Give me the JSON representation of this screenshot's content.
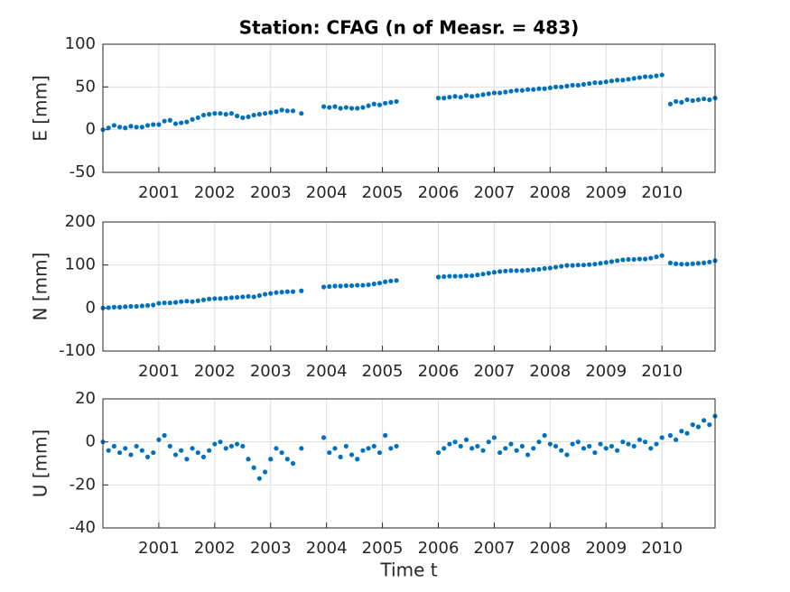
{
  "chart_data": [
    {
      "type": "scatter",
      "title": "Station: CFAG (n of Measr. = 483)",
      "ylabel": "E [mm]",
      "color": "#0072bd",
      "grid": true,
      "xlim": [
        2000.0,
        2010.95
      ],
      "xticks": [
        2001,
        2002,
        2003,
        2004,
        2005,
        2006,
        2007,
        2008,
        2009,
        2010
      ],
      "ylim": [
        -50,
        100
      ],
      "yticks": [
        -50,
        0,
        50,
        100
      ],
      "x": [
        2000.0,
        2000.1,
        2000.2,
        2000.3,
        2000.4,
        2000.5,
        2000.6,
        2000.7,
        2000.8,
        2000.9,
        2001.0,
        2001.1,
        2001.2,
        2001.3,
        2001.4,
        2001.5,
        2001.6,
        2001.7,
        2001.8,
        2001.9,
        2002.0,
        2002.1,
        2002.2,
        2002.3,
        2002.4,
        2002.5,
        2002.6,
        2002.7,
        2002.8,
        2002.9,
        2003.0,
        2003.1,
        2003.2,
        2003.3,
        2003.4,
        2003.55,
        2003.95,
        2004.05,
        2004.15,
        2004.25,
        2004.35,
        2004.45,
        2004.55,
        2004.65,
        2004.75,
        2004.85,
        2004.95,
        2005.05,
        2005.15,
        2005.25,
        2006.0,
        2006.1,
        2006.2,
        2006.3,
        2006.4,
        2006.5,
        2006.6,
        2006.7,
        2006.8,
        2006.9,
        2007.0,
        2007.1,
        2007.2,
        2007.3,
        2007.4,
        2007.5,
        2007.6,
        2007.7,
        2007.8,
        2007.9,
        2008.0,
        2008.1,
        2008.2,
        2008.3,
        2008.4,
        2008.5,
        2008.6,
        2008.7,
        2008.8,
        2008.9,
        2009.0,
        2009.1,
        2009.2,
        2009.3,
        2009.4,
        2009.5,
        2009.6,
        2009.7,
        2009.8,
        2009.9,
        2010.0,
        2010.15,
        2010.25,
        2010.35,
        2010.45,
        2010.55,
        2010.65,
        2010.75,
        2010.85,
        2010.95
      ],
      "values": [
        0,
        2,
        5,
        3,
        2,
        4,
        3,
        3,
        5,
        6,
        6,
        10,
        11,
        7,
        8,
        9,
        12,
        14,
        17,
        18,
        19,
        19,
        18,
        19,
        16,
        14,
        15,
        17,
        18,
        19,
        20,
        21,
        23,
        22,
        22,
        19,
        27,
        26,
        27,
        25,
        26,
        25,
        25,
        26,
        28,
        30,
        29,
        31,
        32,
        33,
        37,
        37,
        38,
        39,
        38,
        40,
        39,
        40,
        41,
        42,
        43,
        43,
        44,
        45,
        46,
        46,
        47,
        47,
        48,
        48,
        49,
        50,
        50,
        51,
        52,
        52,
        53,
        54,
        55,
        55,
        56,
        57,
        58,
        58,
        59,
        60,
        61,
        62,
        62,
        63,
        64,
        30,
        33,
        32,
        35,
        34,
        35,
        36,
        35,
        37
      ]
    },
    {
      "type": "scatter",
      "ylabel": "N [mm]",
      "color": "#0072bd",
      "grid": true,
      "xlim": [
        2000.0,
        2010.95
      ],
      "xticks": [
        2001,
        2002,
        2003,
        2004,
        2005,
        2006,
        2007,
        2008,
        2009,
        2010
      ],
      "ylim": [
        -100,
        200
      ],
      "yticks": [
        -100,
        0,
        100,
        200
      ],
      "x": [
        2000.0,
        2000.1,
        2000.2,
        2000.3,
        2000.4,
        2000.5,
        2000.6,
        2000.7,
        2000.8,
        2000.9,
        2001.0,
        2001.1,
        2001.2,
        2001.3,
        2001.4,
        2001.5,
        2001.6,
        2001.7,
        2001.8,
        2001.9,
        2002.0,
        2002.1,
        2002.2,
        2002.3,
        2002.4,
        2002.5,
        2002.6,
        2002.7,
        2002.8,
        2002.9,
        2003.0,
        2003.1,
        2003.2,
        2003.3,
        2003.4,
        2003.55,
        2003.95,
        2004.05,
        2004.15,
        2004.25,
        2004.35,
        2004.45,
        2004.55,
        2004.65,
        2004.75,
        2004.85,
        2004.95,
        2005.05,
        2005.15,
        2005.25,
        2006.0,
        2006.1,
        2006.2,
        2006.3,
        2006.4,
        2006.5,
        2006.6,
        2006.7,
        2006.8,
        2006.9,
        2007.0,
        2007.1,
        2007.2,
        2007.3,
        2007.4,
        2007.5,
        2007.6,
        2007.7,
        2007.8,
        2007.9,
        2008.0,
        2008.1,
        2008.2,
        2008.3,
        2008.4,
        2008.5,
        2008.6,
        2008.7,
        2008.8,
        2008.9,
        2009.0,
        2009.1,
        2009.2,
        2009.3,
        2009.4,
        2009.5,
        2009.6,
        2009.7,
        2009.8,
        2009.9,
        2010.0,
        2010.15,
        2010.25,
        2010.35,
        2010.45,
        2010.55,
        2010.65,
        2010.75,
        2010.85,
        2010.95
      ],
      "values": [
        0,
        1,
        2,
        2,
        3,
        4,
        4,
        5,
        6,
        7,
        11,
        12,
        12,
        13,
        15,
        16,
        15,
        17,
        19,
        21,
        22,
        22,
        23,
        24,
        25,
        26,
        27,
        26,
        29,
        32,
        34,
        36,
        37,
        38,
        38,
        40,
        49,
        50,
        51,
        51,
        52,
        52,
        53,
        53,
        54,
        56,
        58,
        61,
        63,
        64,
        72,
        73,
        74,
        74,
        74,
        75,
        75,
        77,
        79,
        81,
        83,
        85,
        86,
        87,
        87,
        87,
        88,
        89,
        90,
        92,
        93,
        95,
        97,
        99,
        99,
        100,
        100,
        101,
        102,
        104,
        106,
        108,
        110,
        112,
        113,
        113,
        114,
        114,
        116,
        119,
        122,
        105,
        103,
        102,
        102,
        103,
        104,
        105,
        107,
        110
      ]
    },
    {
      "type": "scatter",
      "ylabel": "U [mm]",
      "xlabel": "Time t",
      "color": "#0072bd",
      "grid": true,
      "xlim": [
        2000.0,
        2010.95
      ],
      "xticks": [
        2001,
        2002,
        2003,
        2004,
        2005,
        2006,
        2007,
        2008,
        2009,
        2010
      ],
      "ylim": [
        -40,
        20
      ],
      "yticks": [
        -40,
        -20,
        0,
        20
      ],
      "x": [
        2000.0,
        2000.1,
        2000.2,
        2000.3,
        2000.4,
        2000.5,
        2000.6,
        2000.7,
        2000.8,
        2000.9,
        2001.0,
        2001.1,
        2001.2,
        2001.3,
        2001.4,
        2001.5,
        2001.6,
        2001.7,
        2001.8,
        2001.9,
        2002.0,
        2002.1,
        2002.2,
        2002.3,
        2002.4,
        2002.5,
        2002.6,
        2002.7,
        2002.8,
        2002.9,
        2003.0,
        2003.1,
        2003.2,
        2003.3,
        2003.4,
        2003.55,
        2003.95,
        2004.05,
        2004.15,
        2004.25,
        2004.35,
        2004.45,
        2004.55,
        2004.65,
        2004.75,
        2004.85,
        2004.95,
        2005.05,
        2005.15,
        2005.25,
        2006.0,
        2006.1,
        2006.2,
        2006.3,
        2006.4,
        2006.5,
        2006.6,
        2006.7,
        2006.8,
        2006.9,
        2007.0,
        2007.1,
        2007.2,
        2007.3,
        2007.4,
        2007.5,
        2007.6,
        2007.7,
        2007.8,
        2007.9,
        2008.0,
        2008.1,
        2008.2,
        2008.3,
        2008.4,
        2008.5,
        2008.6,
        2008.7,
        2008.8,
        2008.9,
        2009.0,
        2009.1,
        2009.2,
        2009.3,
        2009.4,
        2009.5,
        2009.6,
        2009.7,
        2009.8,
        2009.9,
        2010.0,
        2010.15,
        2010.25,
        2010.35,
        2010.45,
        2010.55,
        2010.65,
        2010.75,
        2010.85,
        2010.95
      ],
      "values": [
        0,
        -4,
        -2,
        -5,
        -3,
        -6,
        -2,
        -4,
        -7,
        -5,
        1,
        3,
        -2,
        -6,
        -4,
        -8,
        -3,
        -5,
        -7,
        -4,
        -1,
        0,
        -3,
        -2,
        -1,
        -2,
        -8,
        -12,
        -17,
        -14,
        -8,
        -3,
        -5,
        -8,
        -10,
        -3,
        2,
        -5,
        -3,
        -7,
        -2,
        -6,
        -8,
        -4,
        -3,
        -2,
        -5,
        3,
        -3,
        -2,
        -5,
        -3,
        -1,
        0,
        -2,
        1,
        -3,
        -2,
        -4,
        0,
        2,
        -5,
        -3,
        -1,
        -4,
        -2,
        -6,
        -3,
        0,
        3,
        -1,
        -2,
        -4,
        -6,
        -1,
        0,
        -3,
        -2,
        -5,
        -1,
        -3,
        -2,
        -4,
        0,
        -1,
        -2,
        1,
        0,
        -3,
        -1,
        2,
        3,
        1,
        5,
        4,
        8,
        7,
        10,
        8,
        12
      ]
    }
  ]
}
